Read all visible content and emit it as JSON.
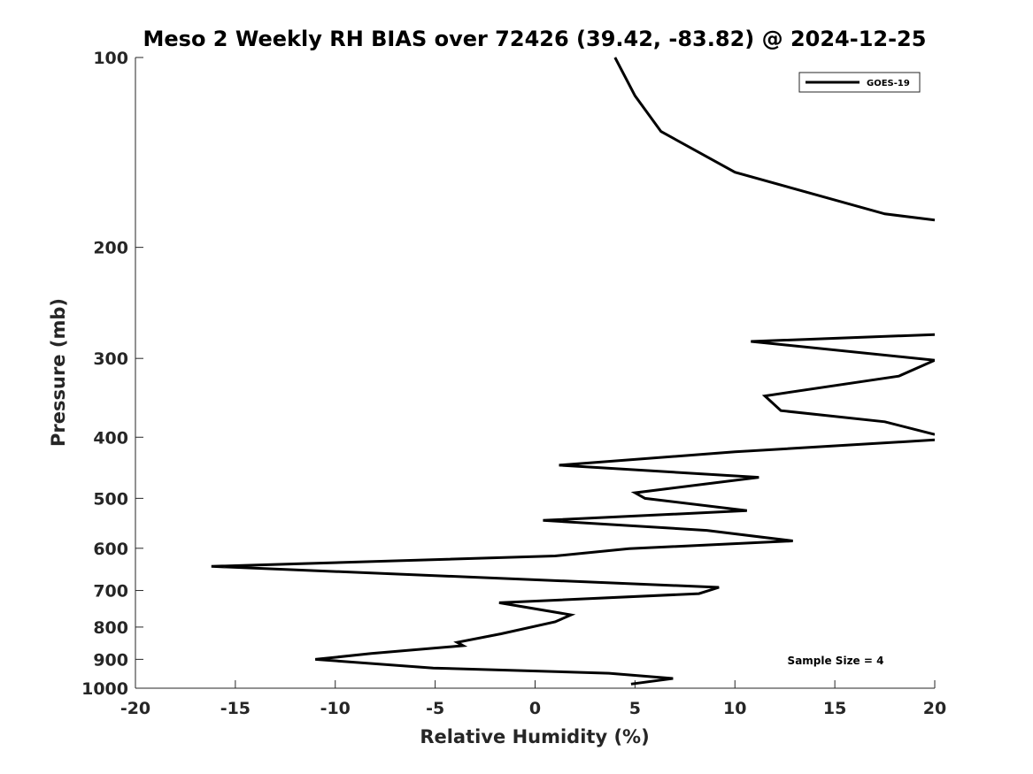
{
  "chart_data": {
    "type": "line",
    "title": "Meso 2 Weekly RH BIAS over 72426 (39.42, -83.82) @ 2024-12-25",
    "xlabel": "Relative Humidity (%)",
    "ylabel": "Pressure (mb)",
    "xlim": [
      -20,
      20
    ],
    "ylim": [
      100,
      1000
    ],
    "y_scale": "log",
    "y_reversed": true,
    "xticks": [
      -20,
      -15,
      -10,
      -5,
      0,
      5,
      10,
      15,
      20
    ],
    "xtick_labels": [
      "-20",
      "-15",
      "-10",
      "-5",
      "0",
      "5",
      "10",
      "15",
      "20"
    ],
    "yticks": [
      100,
      200,
      300,
      400,
      500,
      600,
      700,
      800,
      900,
      1000
    ],
    "ytick_labels": [
      "100",
      "200",
      "300",
      "400",
      "500",
      "600",
      "700",
      "800",
      "900",
      "1000"
    ],
    "grid": false,
    "legend_position": "top-right",
    "annotation": "Sample Size = 4",
    "series": [
      {
        "name": "GOES-19",
        "color": "#000000",
        "segments": [
          [
            {
              "x": 4.0,
              "p": 100
            },
            {
              "x": 5.0,
              "p": 115
            },
            {
              "x": 6.3,
              "p": 131
            },
            {
              "x": 10.0,
              "p": 152
            },
            {
              "x": 17.5,
              "p": 177
            },
            {
              "x": 20.0,
              "p": 181
            }
          ],
          [
            {
              "x": 20.0,
              "p": 275
            },
            {
              "x": 10.8,
              "p": 282
            },
            {
              "x": 20.0,
              "p": 302
            },
            {
              "x": 18.2,
              "p": 320
            },
            {
              "x": 11.5,
              "p": 344
            },
            {
              "x": 12.3,
              "p": 363
            },
            {
              "x": 17.5,
              "p": 378
            },
            {
              "x": 20.0,
              "p": 396
            }
          ],
          [
            {
              "x": 20.0,
              "p": 404
            },
            {
              "x": 10.0,
              "p": 422
            },
            {
              "x": 1.2,
              "p": 443
            },
            {
              "x": 11.2,
              "p": 463
            },
            {
              "x": 5.0,
              "p": 490
            },
            {
              "x": 5.5,
              "p": 500
            },
            {
              "x": 10.6,
              "p": 523
            },
            {
              "x": 0.4,
              "p": 542
            },
            {
              "x": 8.6,
              "p": 562
            },
            {
              "x": 12.9,
              "p": 584
            },
            {
              "x": 4.7,
              "p": 601
            },
            {
              "x": 1.0,
              "p": 617
            },
            {
              "x": -16.2,
              "p": 641
            },
            {
              "x": 9.2,
              "p": 692
            },
            {
              "x": 8.2,
              "p": 708
            },
            {
              "x": -1.8,
              "p": 732
            },
            {
              "x": 1.8,
              "p": 765
            },
            {
              "x": 1.0,
              "p": 785
            },
            {
              "x": -1.7,
              "p": 820
            },
            {
              "x": -3.9,
              "p": 846
            },
            {
              "x": -3.6,
              "p": 856
            },
            {
              "x": -8.2,
              "p": 881
            },
            {
              "x": -11.0,
              "p": 900
            },
            {
              "x": -5.1,
              "p": 929
            },
            {
              "x": 3.7,
              "p": 947
            },
            {
              "x": 6.9,
              "p": 965
            },
            {
              "x": 4.8,
              "p": 985
            }
          ]
        ]
      }
    ]
  }
}
